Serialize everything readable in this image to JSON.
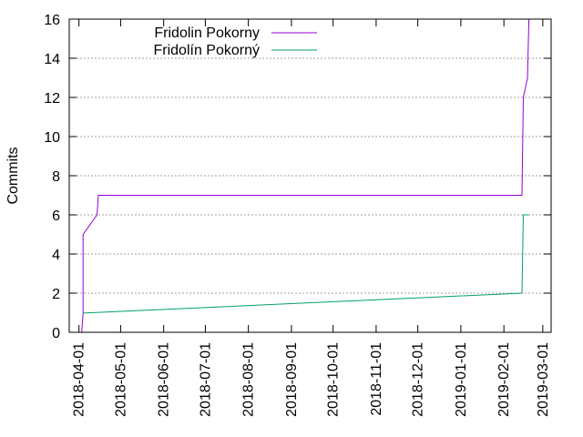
{
  "chart_data": {
    "type": "line",
    "title": "",
    "xlabel": "",
    "ylabel": "Commits",
    "x_type": "date",
    "xlim": [
      "2018-03-25",
      "2019-03-07"
    ],
    "ylim": [
      0,
      16
    ],
    "x_ticks": [
      "2018-04-01",
      "2018-05-01",
      "2018-06-01",
      "2018-07-01",
      "2018-08-01",
      "2018-09-01",
      "2018-10-01",
      "2018-11-01",
      "2018-12-01",
      "2019-01-01",
      "2019-02-01",
      "2019-03-01"
    ],
    "y_ticks": [
      0,
      2,
      4,
      6,
      8,
      10,
      12,
      14,
      16
    ],
    "grid": "horizontal-dotted",
    "legend_position": "top-left",
    "series": [
      {
        "name": "Fridolin Pokorny",
        "color": "#9400d3",
        "points": [
          {
            "x": "2018-04-03",
            "y": 0
          },
          {
            "x": "2018-04-04",
            "y": 1
          },
          {
            "x": "2018-04-04",
            "y": 5
          },
          {
            "x": "2018-04-14",
            "y": 6
          },
          {
            "x": "2018-04-15",
            "y": 7
          },
          {
            "x": "2019-02-14",
            "y": 7
          },
          {
            "x": "2019-02-15",
            "y": 12
          },
          {
            "x": "2019-02-18",
            "y": 13
          },
          {
            "x": "2019-02-19",
            "y": 16
          }
        ]
      },
      {
        "name": "Fridolín Pokorný",
        "color": "#009e73",
        "points": [
          {
            "x": "2018-04-04",
            "y": 0.98
          },
          {
            "x": "2019-02-14",
            "y": 2
          },
          {
            "x": "2019-02-15",
            "y": 6
          },
          {
            "x": "2019-02-19",
            "y": 6
          }
        ]
      }
    ]
  }
}
